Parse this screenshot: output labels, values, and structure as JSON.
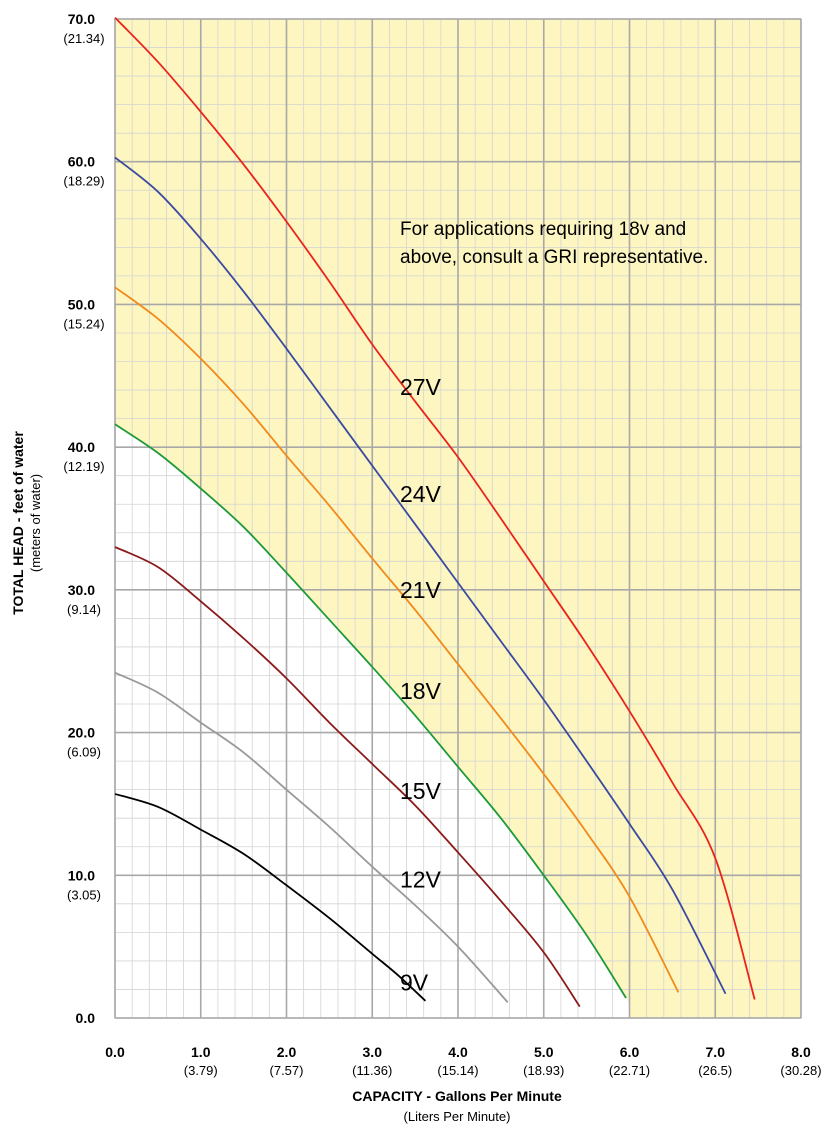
{
  "chart_data": {
    "type": "line",
    "note_lines": [
      "For applications requiring 18v and",
      "above, consult a GRI representative."
    ],
    "xlabel": "CAPACITY - Gallons Per Minute",
    "xlabel_sub": "(Liters Per Minute)",
    "ylabel": "TOTAL HEAD - feet of water",
    "ylabel_sub": "(meters of water)",
    "xlim": [
      0,
      8
    ],
    "ylim": [
      0,
      70
    ],
    "x_ticks": [
      {
        "value": 0,
        "label": "0.0",
        "sub": ""
      },
      {
        "value": 1,
        "label": "1.0",
        "sub": "(3.79)"
      },
      {
        "value": 2,
        "label": "2.0",
        "sub": "(7.57)"
      },
      {
        "value": 3,
        "label": "3.0",
        "sub": "(11.36)"
      },
      {
        "value": 4,
        "label": "4.0",
        "sub": "(15.14)"
      },
      {
        "value": 5,
        "label": "5.0",
        "sub": "(18.93)"
      },
      {
        "value": 6,
        "label": "6.0",
        "sub": "(22.71)"
      },
      {
        "value": 7,
        "label": "7.0",
        "sub": "(26.5)"
      },
      {
        "value": 8,
        "label": "8.0",
        "sub": "(30.28)"
      }
    ],
    "y_ticks": [
      {
        "value": 0,
        "label": "0.0",
        "sub": ""
      },
      {
        "value": 10,
        "label": "10.0",
        "sub": "(3.05)"
      },
      {
        "value": 20,
        "label": "20.0",
        "sub": "(6.09)"
      },
      {
        "value": 30,
        "label": "30.0",
        "sub": "(9.14)"
      },
      {
        "value": 40,
        "label": "40.0",
        "sub": "(12.19)"
      },
      {
        "value": 50,
        "label": "50.0",
        "sub": "(15.24)"
      },
      {
        "value": 60,
        "label": "60.0",
        "sub": "(18.29)"
      },
      {
        "value": 70,
        "label": "70.0",
        "sub": "(21.34)"
      }
    ],
    "grid": true,
    "highlight_color": "#fdf6c0",
    "series": [
      {
        "name": "9V",
        "color": "#000000",
        "label_at": [
          3.3,
          2.5
        ],
        "x": [
          0,
          0.5,
          1.0,
          1.5,
          2.0,
          2.5,
          3.0,
          3.3,
          3.62
        ],
        "y": [
          15.7,
          14.8,
          13.2,
          11.5,
          9.3,
          7.0,
          4.5,
          3.0,
          1.2
        ]
      },
      {
        "name": "12V",
        "color": "#999999",
        "label_at": [
          3.3,
          9.7
        ],
        "x": [
          0,
          0.5,
          1.0,
          1.5,
          2.0,
          2.5,
          3.0,
          3.5,
          4.0,
          4.58
        ],
        "y": [
          24.2,
          22.8,
          20.7,
          18.6,
          16.0,
          13.4,
          10.6,
          7.9,
          5.0,
          1.1
        ]
      },
      {
        "name": "15V",
        "color": "#8b1a1a",
        "label_at": [
          3.3,
          15.9
        ],
        "x": [
          0,
          0.5,
          1.0,
          1.5,
          2.0,
          2.5,
          3.0,
          3.5,
          4.0,
          4.5,
          5.0,
          5.42
        ],
        "y": [
          33.0,
          31.6,
          29.2,
          26.6,
          23.8,
          20.7,
          17.8,
          14.9,
          11.6,
          8.2,
          4.6,
          0.8
        ]
      },
      {
        "name": "18V",
        "color": "#1e9a3a",
        "label_at": [
          3.3,
          22.9
        ],
        "x": [
          0,
          0.5,
          1.0,
          1.5,
          2.0,
          2.5,
          3.0,
          3.5,
          4.0,
          4.5,
          5.0,
          5.5,
          5.96
        ],
        "y": [
          41.6,
          39.6,
          37.1,
          34.4,
          31.2,
          27.9,
          24.6,
          21.2,
          17.6,
          14.0,
          10.0,
          5.8,
          1.4
        ]
      },
      {
        "name": "21V",
        "color": "#f08a1c",
        "label_at": [
          3.3,
          30.0
        ],
        "x": [
          0,
          0.5,
          1.0,
          1.5,
          2.0,
          2.5,
          3.0,
          3.5,
          4.0,
          4.5,
          5.0,
          5.5,
          6.0,
          6.57
        ],
        "y": [
          51.2,
          49.0,
          46.2,
          43.0,
          39.4,
          35.9,
          32.2,
          28.6,
          24.8,
          21.0,
          17.1,
          13.0,
          8.5,
          1.8
        ]
      },
      {
        "name": "24V",
        "color": "#3a4aa0",
        "label_at": [
          3.3,
          36.7
        ],
        "x": [
          0,
          0.5,
          1.0,
          1.5,
          2.0,
          2.5,
          3.0,
          3.5,
          4.0,
          4.5,
          5.0,
          5.5,
          6.0,
          6.5,
          7.12
        ],
        "y": [
          60.3,
          57.9,
          54.6,
          50.9,
          46.9,
          42.8,
          38.7,
          34.6,
          30.5,
          26.4,
          22.3,
          18.0,
          13.6,
          9.0,
          1.7
        ]
      },
      {
        "name": "27V",
        "color": "#e8241c",
        "label_at": [
          3.3,
          44.2
        ],
        "x": [
          0,
          0.5,
          1.0,
          1.5,
          2.0,
          2.5,
          3.0,
          3.5,
          4.0,
          4.5,
          5.0,
          5.5,
          6.0,
          6.5,
          7.0,
          7.46
        ],
        "y": [
          70.1,
          67.0,
          63.5,
          59.8,
          55.8,
          51.6,
          47.2,
          43.2,
          39.3,
          35.0,
          30.6,
          26.2,
          21.5,
          16.5,
          11.2,
          1.3
        ]
      }
    ]
  }
}
